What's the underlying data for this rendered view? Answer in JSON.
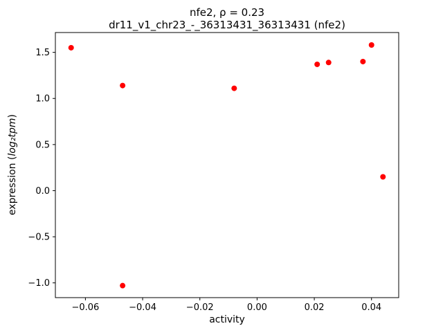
{
  "chart_data": {
    "type": "scatter",
    "title": "nfe2, ρ = 0.23",
    "subtitle": "dr11_v1_chr23_-_36313431_36313431 (nfe2)",
    "xlabel": "activity",
    "ylabel": "expression (log₂tpm)",
    "ylabel_prefix": "expression (",
    "ylabel_math": "log₂tpm",
    "ylabel_suffix": ")",
    "marker_color": "#ff0000",
    "legend": "none",
    "grid": false,
    "xlim": [
      -0.0705,
      0.0495
    ],
    "ylim": [
      -1.16,
      1.715
    ],
    "xticks": [
      -0.06,
      -0.04,
      -0.02,
      0.0,
      0.02,
      0.04
    ],
    "xtick_labels": [
      "−0.06",
      "−0.04",
      "−0.02",
      "0.00",
      "0.02",
      "0.04"
    ],
    "yticks": [
      -1.0,
      -0.5,
      0.0,
      0.5,
      1.0,
      1.5
    ],
    "ytick_labels": [
      "−1.0",
      "−0.5",
      "0.0",
      "0.5",
      "1.0",
      "1.5"
    ],
    "points": [
      {
        "x": -0.065,
        "y": 1.55
      },
      {
        "x": -0.047,
        "y": 1.14
      },
      {
        "x": -0.047,
        "y": -1.03
      },
      {
        "x": -0.008,
        "y": 1.11
      },
      {
        "x": 0.021,
        "y": 1.37
      },
      {
        "x": 0.025,
        "y": 1.39
      },
      {
        "x": 0.037,
        "y": 1.4
      },
      {
        "x": 0.04,
        "y": 1.58
      },
      {
        "x": 0.044,
        "y": 0.15
      }
    ]
  }
}
